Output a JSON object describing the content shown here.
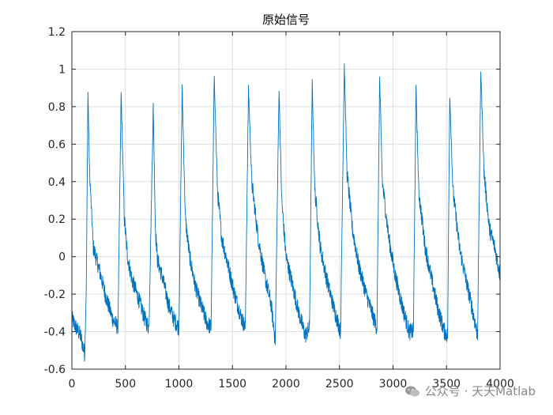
{
  "chart_data": {
    "type": "line",
    "title": "原始信号",
    "xlabel": "",
    "ylabel": "",
    "xlim": [
      0,
      4000
    ],
    "ylim": [
      -0.6,
      1.2
    ],
    "grid": true,
    "xticks": [
      0,
      500,
      1000,
      1500,
      2000,
      2500,
      3000,
      3500,
      4000
    ],
    "xtick_labels": [
      "0",
      "500",
      "1000",
      "1500",
      "2000",
      "2500",
      "3000",
      "3500",
      "4000"
    ],
    "yticks": [
      -0.6,
      -0.4,
      -0.2,
      0,
      0.2,
      0.4,
      0.6,
      0.8,
      1,
      1.2
    ],
    "ytick_labels": [
      "-0.6",
      "-0.4",
      "-0.2",
      "0",
      "0.2",
      "0.4",
      "0.6",
      "0.8",
      "1",
      "1.2"
    ],
    "line_color": "#0072BD",
    "series": [
      {
        "name": "",
        "x": [
          0,
          40,
          80,
          120,
          135,
          150,
          165,
          200,
          260,
          320,
          380,
          430,
          460,
          490,
          520,
          560,
          620,
          680,
          720,
          760,
          780,
          800,
          850,
          900,
          950,
          1000,
          1030,
          1060,
          1100,
          1150,
          1200,
          1260,
          1300,
          1330,
          1360,
          1400,
          1460,
          1520,
          1580,
          1620,
          1650,
          1680,
          1740,
          1800,
          1860,
          1900,
          1935,
          1960,
          2000,
          2060,
          2120,
          2180,
          2220,
          2245,
          2270,
          2320,
          2380,
          2450,
          2510,
          2545,
          2570,
          2620,
          2680,
          2750,
          2820,
          2850,
          2875,
          2900,
          2960,
          3020,
          3080,
          3150,
          3190,
          3215,
          3240,
          3300,
          3360,
          3420,
          3480,
          3510,
          3530,
          3560,
          3620,
          3680,
          3740,
          3790,
          3820,
          3850,
          3900,
          3950,
          4000
        ],
        "y": [
          -0.33,
          -0.38,
          -0.42,
          -0.52,
          -0.15,
          0.88,
          0.45,
          0.05,
          -0.08,
          -0.22,
          -0.33,
          -0.38,
          0.87,
          0.2,
          0.0,
          -0.12,
          -0.22,
          -0.33,
          -0.38,
          0.8,
          0.15,
          -0.02,
          -0.12,
          -0.25,
          -0.33,
          -0.38,
          0.9,
          0.2,
          0.0,
          -0.15,
          -0.25,
          -0.35,
          -0.38,
          0.97,
          0.35,
          0.1,
          -0.05,
          -0.2,
          -0.32,
          -0.38,
          0.9,
          0.4,
          0.1,
          -0.1,
          -0.25,
          -0.45,
          0.9,
          0.3,
          0.0,
          -0.15,
          -0.3,
          -0.42,
          -0.38,
          0.92,
          0.35,
          0.05,
          -0.12,
          -0.28,
          -0.4,
          1.03,
          0.45,
          0.15,
          -0.05,
          -0.2,
          -0.33,
          -0.38,
          0.95,
          0.4,
          0.1,
          -0.1,
          -0.25,
          -0.4,
          -0.4,
          0.9,
          0.35,
          0.05,
          -0.12,
          -0.28,
          -0.4,
          -0.42,
          0.87,
          0.35,
          0.05,
          -0.12,
          -0.28,
          -0.42,
          1.0,
          0.45,
          0.15,
          0.05,
          -0.1
        ]
      }
    ]
  },
  "watermark": {
    "text": "公众号 · 天天Matlab",
    "icon": "wechat-icon"
  }
}
